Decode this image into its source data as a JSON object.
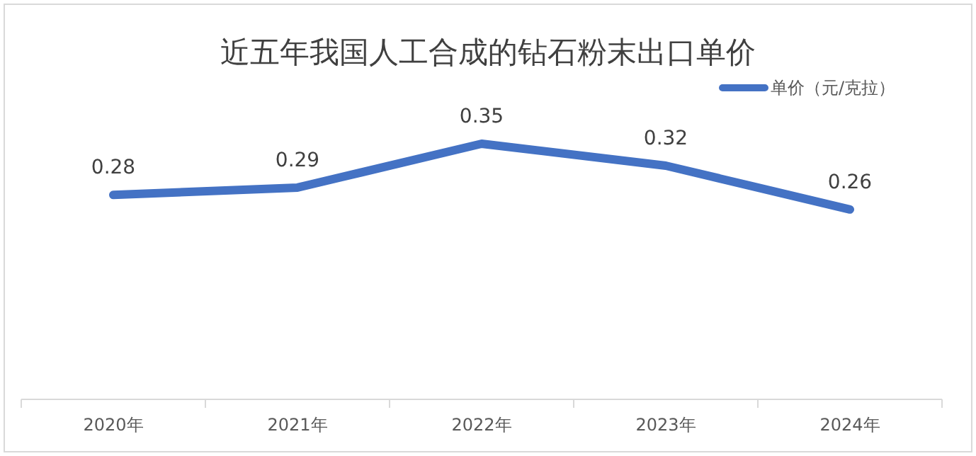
{
  "chart_data": {
    "type": "line",
    "title": "近五年我国人工合成的钻石粉末出口单价",
    "categories": [
      "2020年",
      "2021年",
      "2022年",
      "2023年",
      "2024年"
    ],
    "series": [
      {
        "name": "单价（元/克拉）",
        "color": "#4472c4",
        "values": [
          0.28,
          0.29,
          0.35,
          0.32,
          0.26
        ]
      }
    ],
    "data_labels": true,
    "legend": "top right",
    "marker": "none",
    "line_style": "solid"
  }
}
